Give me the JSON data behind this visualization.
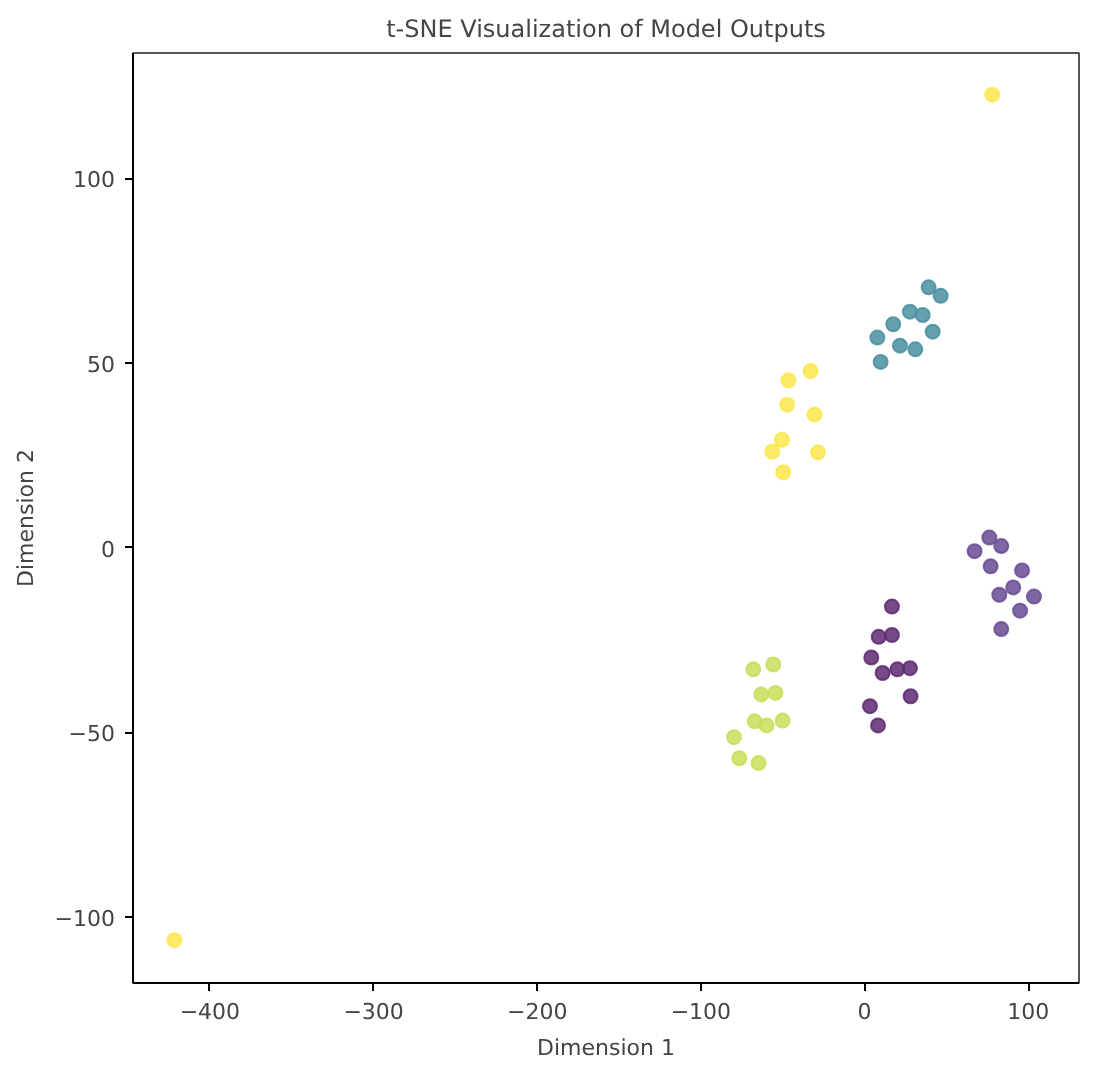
{
  "chart_data": {
    "type": "scatter",
    "title": "t-SNE Visualization of Model Outputs",
    "xlabel": "Dimension 1",
    "ylabel": "Dimension 2",
    "xlim": [
      -447,
      131
    ],
    "ylim": [
      -118,
      134
    ],
    "xticks": [
      -400,
      -300,
      -200,
      -100,
      0,
      100
    ],
    "yticks": [
      -100,
      -50,
      0,
      50,
      100
    ],
    "grid": false,
    "marker": "circle",
    "series": [
      {
        "color": "#4a8fa0",
        "x": [
          39.1,
          46.5,
          27.7,
          35.5,
          17.5,
          41.6,
          7.8,
          21.6,
          31.0,
          9.8
        ],
        "values": [
          70.5,
          68.2,
          63.9,
          63.0,
          60.5,
          58.5,
          56.9,
          54.7,
          53.7,
          50.3
        ]
      },
      {
        "color": "#fbe64e",
        "x": [
          -33.0,
          -46.5,
          -47.3,
          -30.6,
          -50.5,
          -56.4,
          -28.5,
          -49.7,
          78,
          -421.7
        ],
        "values": [
          47.8,
          45.3,
          38.7,
          36.0,
          29.2,
          26.0,
          25.8,
          20.4,
          122.7,
          -106.4
        ]
      },
      {
        "color": "#6a4c93",
        "x": [
          76.2,
          83.5,
          67.2,
          77.0,
          96.2,
          90.8,
          82.3,
          103.5,
          95.0,
          83.5
        ],
        "values": [
          2.7,
          0.4,
          -1.0,
          -5.1,
          -6.2,
          -10.8,
          -12.8,
          -13.3,
          -17.1,
          -22.1
        ]
      },
      {
        "color": "#5e2a72",
        "x": [
          16.7,
          8.6,
          16.7,
          4.1,
          11.0,
          20.0,
          27.7,
          28.1,
          3.3,
          8.2
        ],
        "values": [
          -16.0,
          -24.2,
          -23.7,
          -29.8,
          -34.0,
          -33.0,
          -32.7,
          -40.3,
          -43.0,
          -48.2
        ]
      },
      {
        "color": "#c8de5a",
        "x": [
          -55.8,
          -68.0,
          -63.1,
          -54.5,
          -67.2,
          -50.1,
          -59.9,
          -79.8,
          -76.6,
          -64.8
        ],
        "values": [
          -31.7,
          -33.0,
          -39.8,
          -39.4,
          -47.1,
          -46.9,
          -48.2,
          -51.4,
          -57.1,
          -58.4
        ]
      }
    ]
  }
}
